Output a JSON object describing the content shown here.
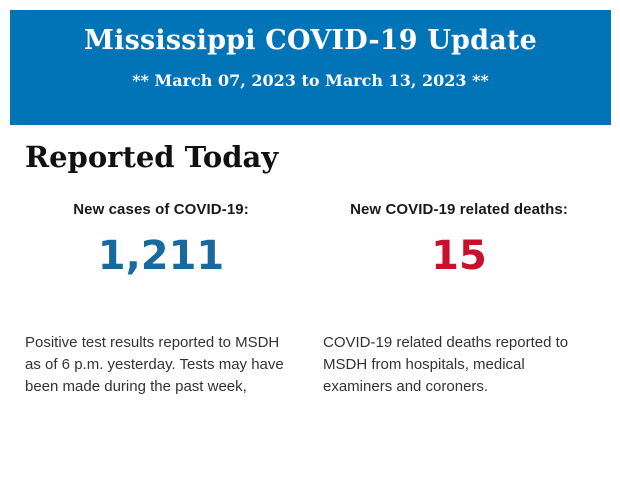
{
  "banner": {
    "background": "#0074b7",
    "title": "Mississippi COVID-19 Update",
    "subtitle": "** March 07, 2023 to March 13, 2023 **"
  },
  "section": {
    "heading": "Reported Today"
  },
  "stats": {
    "0": {
      "label": "New cases of COVID-19:",
      "value": "1,211",
      "value_color": "#17699e",
      "description": "Positive test results reported to MSDH as of 6 p.m. yesterday. Tests may have been made during the past week,"
    },
    "1": {
      "label": "New COVID-19 related deaths:",
      "value": "15",
      "value_color": "#c8102e",
      "description": "COVID-19 related deaths reported to MSDH from hospitals, medical examiners and coroners."
    }
  }
}
